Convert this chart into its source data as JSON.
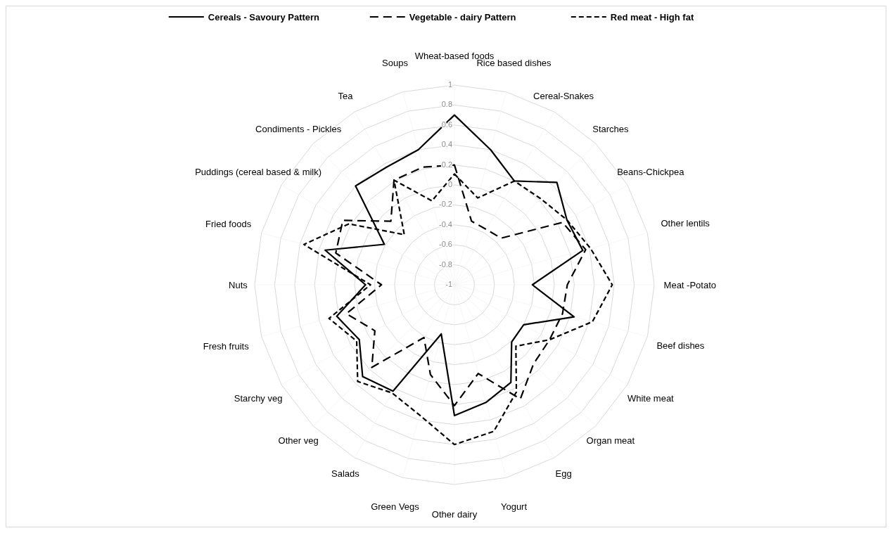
{
  "chart_data": {
    "type": "radar",
    "categories": [
      "Wheat-based foods",
      "Rice based dishes",
      "Cereal-Snakes",
      "Starches",
      "Beans-Chickpea",
      "Other lentils",
      "Meat -Potato",
      "Beef dishes",
      "White meat",
      "Organ meat",
      "Egg",
      "Yogurt",
      "Other dairy",
      "Green Vegs",
      "Salads",
      "Other veg",
      "Starchy veg",
      "Fresh fruits",
      "Nuts",
      "Fried foods",
      "Puddings (cereal based & milk)",
      "Condiments - Pickles",
      "Tea",
      "Soups"
    ],
    "series": [
      {
        "name": "Cereals - Savoury Pattern",
        "color": "#000000",
        "line_style": "solid",
        "values": [
          0.7,
          0.4,
          0.2,
          0.45,
          0.3,
          0.33,
          -0.22,
          0.24,
          -0.2,
          -0.19,
          0.13,
          0.22,
          0.31,
          -0.49,
          0.23,
          0.3,
          0.1,
          0.22,
          -0.11,
          0.34,
          -0.19,
          0.4,
          0.36,
          0.4
        ]
      },
      {
        "name": "Vegetable - dairy Pattern",
        "color": "#000000",
        "line_style": "dashed",
        "values": [
          0.2,
          -0.34,
          -0.36,
          -0.34,
          0.25,
          0.36,
          0.13,
          0.12,
          0.1,
          0.12,
          0.32,
          -0.08,
          0.21,
          -0.07,
          -0.39,
          0.17,
          -0.08,
          0.12,
          -0.27,
          0.23,
          0.29,
          -0.1,
          0.21,
          0.22
        ]
      },
      {
        "name": "Red meat - High fat",
        "color": "#000000",
        "line_style": "dashed",
        "values": [
          0.11,
          -0.1,
          0.2,
          0.22,
          0.3,
          0.41,
          0.58,
          0.43,
          0.1,
          -0.13,
          0.24,
          0.52,
          0.6,
          0.35,
          0.25,
          0.37,
          0.13,
          0.3,
          -0.16,
          0.56,
          0.22,
          -0.29,
          0.21,
          -0.13
        ]
      }
    ],
    "ylim": [
      -1,
      1
    ],
    "yticks": [
      -1,
      -0.8,
      -0.6,
      -0.4,
      -0.2,
      0,
      0.2,
      0.4,
      0.6,
      0.8,
      1
    ],
    "grid": true,
    "legend": "top",
    "marker": "none"
  }
}
